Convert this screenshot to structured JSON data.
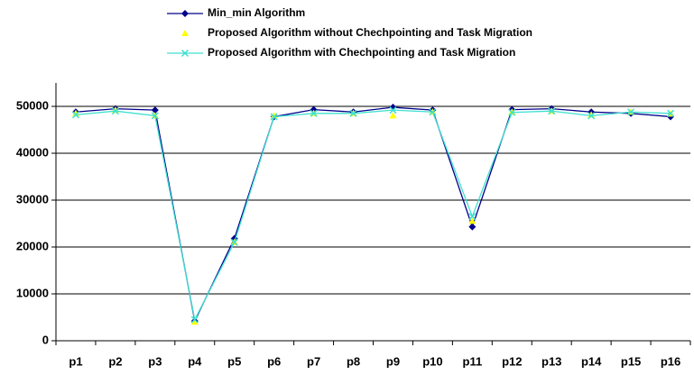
{
  "chart_data": {
    "type": "line",
    "categories": [
      "p1",
      "p2",
      "p3",
      "p4",
      "p5",
      "p6",
      "p7",
      "p8",
      "p9",
      "p10",
      "p11",
      "p12",
      "p13",
      "p14",
      "p15",
      "p16"
    ],
    "ylim": [
      0,
      55000
    ],
    "yticks": [
      0,
      10000,
      20000,
      30000,
      40000,
      50000
    ],
    "grid": true,
    "series": [
      {
        "name": "Min_min Algorithm",
        "color": "#00008b",
        "marker": "diamond",
        "line": true,
        "values": [
          48800,
          49500,
          49200,
          4200,
          21800,
          47800,
          49300,
          48800,
          49800,
          49200,
          24300,
          49300,
          49500,
          48800,
          48500,
          47800
        ]
      },
      {
        "name": "Proposed Algorithm without Chechpointing and Task Migration",
        "color": "#ffff00",
        "marker": "triangle",
        "line": false,
        "values": [
          48500,
          49200,
          48000,
          4000,
          21000,
          48000,
          48500,
          48500,
          48000,
          48800,
          25500,
          48800,
          49000,
          48200,
          48800,
          48400
        ]
      },
      {
        "name": "Proposed Algorithm with Chechpointing and Task Migration",
        "color": "#40e0d0",
        "marker": "x",
        "line": true,
        "values": [
          48200,
          49000,
          48000,
          4500,
          21000,
          47800,
          48500,
          48500,
          49200,
          48800,
          26500,
          48700,
          49000,
          48000,
          48800,
          48500
        ]
      }
    ]
  }
}
